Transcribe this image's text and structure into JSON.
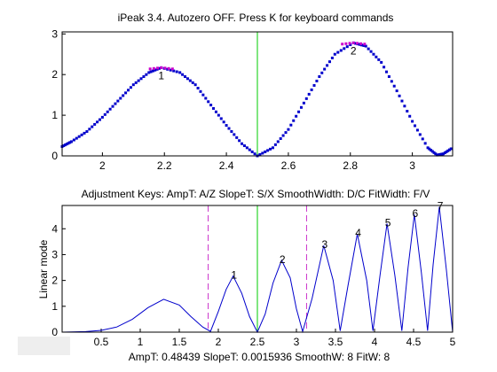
{
  "window": {
    "top_title": "iPeak 3.4. Autozero OFF. Press K for keyboard commands",
    "bottom_title": "Adjustment Keys:   AmpT: A/Z    SlopeT: S/X    SmoothWidth: D/C     FitWidth: F/V",
    "status_bar": "AmpT: 0.48439     SlopeT: 0.0015936     SmoothW: 8     FitW: 8"
  },
  "colors": {
    "points": "#0000cc",
    "peak_points": "#cc00cc",
    "signal_line": "#0000cc",
    "center_line": "#00cc00",
    "window_edges": "#cc33cc",
    "status_box": "#eeeeee"
  },
  "chart_data": [
    {
      "type": "scatter",
      "xlim": [
        1.87,
        3.13
      ],
      "ylim": [
        0,
        3.05
      ],
      "xticks": [
        "2",
        "2.2",
        "2.4",
        "2.6",
        "2.8",
        "3"
      ],
      "yticks": [
        "0",
        "1",
        "2",
        "3"
      ],
      "center_line_x": 2.5,
      "peaks": [
        {
          "label": "1",
          "x": 2.19,
          "y": 2.17
        },
        {
          "label": "2",
          "x": 2.81,
          "y": 2.78
        }
      ],
      "series": [
        {
          "points": [
            [
              1.87,
              0.23
            ],
            [
              1.9,
              0.35
            ],
            [
              1.95,
              0.6
            ],
            [
              2.0,
              0.95
            ],
            [
              2.05,
              1.35
            ],
            [
              2.1,
              1.75
            ],
            [
              2.15,
              2.05
            ],
            [
              2.19,
              2.17
            ],
            [
              2.25,
              2.05
            ],
            [
              2.3,
              1.75
            ],
            [
              2.35,
              1.25
            ],
            [
              2.4,
              0.75
            ],
            [
              2.45,
              0.3
            ],
            [
              2.5,
              0.0
            ],
            [
              2.55,
              0.2
            ],
            [
              2.6,
              0.65
            ],
            [
              2.65,
              1.3
            ],
            [
              2.7,
              1.95
            ],
            [
              2.75,
              2.5
            ],
            [
              2.81,
              2.78
            ],
            [
              2.85,
              2.7
            ],
            [
              2.9,
              2.3
            ],
            [
              2.95,
              1.6
            ],
            [
              3.0,
              0.85
            ],
            [
              3.05,
              0.2
            ],
            [
              3.08,
              0.02
            ],
            [
              3.1,
              0.05
            ],
            [
              3.13,
              0.2
            ]
          ]
        }
      ]
    },
    {
      "type": "line",
      "xlim": [
        0,
        5
      ],
      "ylim": [
        0,
        4.9
      ],
      "ylabel": "Linear mode",
      "xticks": [
        "0.5",
        "1",
        "1.5",
        "2",
        "2.5",
        "3",
        "3.5",
        "4",
        "4.5",
        "5"
      ],
      "yticks": [
        "0",
        "1",
        "2",
        "3",
        "4"
      ],
      "center_line_x": 2.5,
      "window_edges_x": [
        1.87,
        3.13
      ],
      "peaks": [
        {
          "label": "1",
          "x": 2.19,
          "y": 2.17
        },
        {
          "label": "2",
          "x": 2.81,
          "y": 2.78
        },
        {
          "label": "3",
          "x": 3.35,
          "y": 3.35
        },
        {
          "label": "4",
          "x": 3.78,
          "y": 3.8
        },
        {
          "label": "5",
          "x": 4.16,
          "y": 4.2
        },
        {
          "label": "6",
          "x": 4.51,
          "y": 4.55
        },
        {
          "label": "7",
          "x": 4.83,
          "y": 4.85
        }
      ],
      "series": [
        {
          "points": [
            [
              0.0,
              0.0
            ],
            [
              0.3,
              0.02
            ],
            [
              0.5,
              0.07
            ],
            [
              0.7,
              0.2
            ],
            [
              0.9,
              0.5
            ],
            [
              1.1,
              0.95
            ],
            [
              1.3,
              1.27
            ],
            [
              1.5,
              1.05
            ],
            [
              1.65,
              0.6
            ],
            [
              1.8,
              0.2
            ],
            [
              1.9,
              0.03
            ],
            [
              2.0,
              0.8
            ],
            [
              2.1,
              1.65
            ],
            [
              2.19,
              2.17
            ],
            [
              2.3,
              1.5
            ],
            [
              2.4,
              0.6
            ],
            [
              2.5,
              0.0
            ],
            [
              2.6,
              0.7
            ],
            [
              2.7,
              1.9
            ],
            [
              2.81,
              2.78
            ],
            [
              2.92,
              2.1
            ],
            [
              3.0,
              0.9
            ],
            [
              3.08,
              0.02
            ],
            [
              3.2,
              1.3
            ],
            [
              3.35,
              3.35
            ],
            [
              3.47,
              2.0
            ],
            [
              3.56,
              0.05
            ],
            [
              3.66,
              1.8
            ],
            [
              3.78,
              3.8
            ],
            [
              3.9,
              2.0
            ],
            [
              3.98,
              0.05
            ],
            [
              4.07,
              2.2
            ],
            [
              4.16,
              4.2
            ],
            [
              4.26,
              2.2
            ],
            [
              4.35,
              0.05
            ],
            [
              4.43,
              2.5
            ],
            [
              4.51,
              4.55
            ],
            [
              4.6,
              2.3
            ],
            [
              4.68,
              0.05
            ],
            [
              4.75,
              2.6
            ],
            [
              4.83,
              4.85
            ],
            [
              4.92,
              2.4
            ],
            [
              5.0,
              0.0
            ]
          ]
        }
      ]
    }
  ]
}
